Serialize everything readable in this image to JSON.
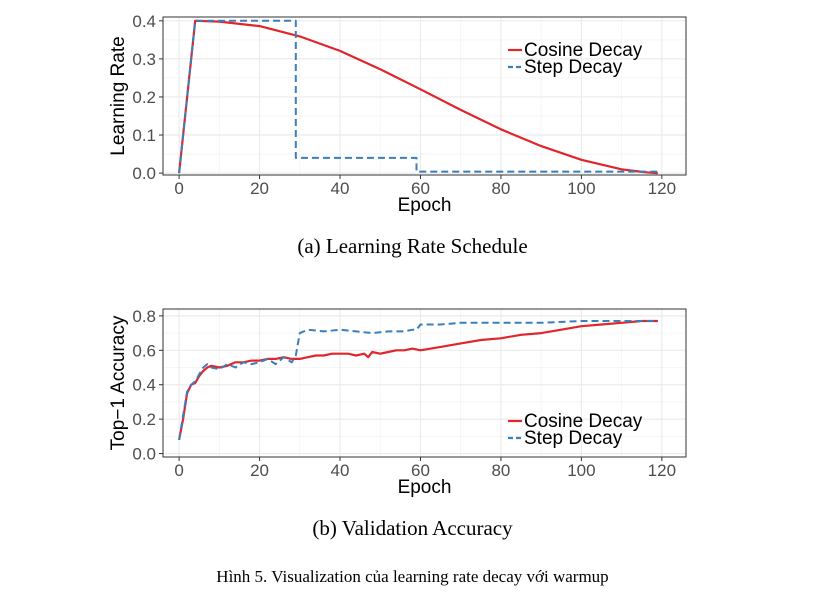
{
  "figure_caption": "Hình 5. Visualization của learning rate decay với warmup",
  "colors": {
    "cosine": "#e0252b",
    "step": "#3b7fba",
    "grid": "#ebebeb",
    "panel_border": "#333333"
  },
  "chart_data": [
    {
      "type": "line",
      "caption": "(a) Learning Rate Schedule",
      "xlabel": "Epoch",
      "ylabel": "Learning Rate",
      "xlim": [
        -4,
        126
      ],
      "ylim": [
        -0.005,
        0.41
      ],
      "xticks": [
        0,
        20,
        40,
        60,
        80,
        100,
        120
      ],
      "yticks": [
        0.0,
        0.1,
        0.2,
        0.3,
        0.4
      ],
      "ytick_labels": [
        "0.0",
        "0.1",
        "0.2",
        "0.3",
        "0.4"
      ],
      "grid": true,
      "legend_position": "top-right",
      "series": [
        {
          "name": "Cosine Decay",
          "color": "#e0252b",
          "style": "solid",
          "x": [
            0,
            4,
            10,
            20,
            30,
            40,
            50,
            60,
            70,
            80,
            90,
            100,
            110,
            116,
            119
          ],
          "y": [
            0.0,
            0.4,
            0.398,
            0.386,
            0.359,
            0.321,
            0.273,
            0.22,
            0.166,
            0.115,
            0.071,
            0.035,
            0.01,
            0.002,
            0.0
          ]
        },
        {
          "name": "Step Decay",
          "color": "#3b7fba",
          "style": "dashed",
          "x": [
            0,
            4,
            29,
            29,
            59,
            59,
            119
          ],
          "y": [
            0.0,
            0.4,
            0.4,
            0.04,
            0.04,
            0.004,
            0.004
          ]
        }
      ]
    },
    {
      "type": "line",
      "caption": "(b) Validation Accuracy",
      "xlabel": "Epoch",
      "ylabel": "Top−1 Accuracy",
      "xlim": [
        -4,
        126
      ],
      "ylim": [
        -0.02,
        0.84
      ],
      "xticks": [
        0,
        20,
        40,
        60,
        80,
        100,
        120
      ],
      "yticks": [
        0.0,
        0.2,
        0.4,
        0.6,
        0.8
      ],
      "ytick_labels": [
        "0.0",
        "0.2",
        "0.4",
        "0.6",
        "0.8"
      ],
      "grid": true,
      "legend_position": "bottom-right",
      "series": [
        {
          "name": "Cosine Decay",
          "color": "#e0252b",
          "style": "solid",
          "x": [
            0,
            1,
            2,
            3,
            4,
            5,
            6,
            7,
            8,
            10,
            12,
            14,
            16,
            18,
            20,
            22,
            24,
            26,
            28,
            30,
            32,
            34,
            36,
            38,
            40,
            42,
            44,
            46,
            47,
            48,
            50,
            52,
            54,
            56,
            58,
            60,
            65,
            70,
            75,
            80,
            85,
            90,
            95,
            100,
            105,
            110,
            115,
            119
          ],
          "y": [
            0.08,
            0.2,
            0.35,
            0.4,
            0.41,
            0.45,
            0.48,
            0.5,
            0.51,
            0.5,
            0.51,
            0.53,
            0.53,
            0.54,
            0.54,
            0.55,
            0.55,
            0.56,
            0.55,
            0.55,
            0.56,
            0.57,
            0.57,
            0.58,
            0.58,
            0.58,
            0.57,
            0.58,
            0.56,
            0.59,
            0.58,
            0.59,
            0.6,
            0.6,
            0.61,
            0.6,
            0.62,
            0.64,
            0.66,
            0.67,
            0.69,
            0.7,
            0.72,
            0.74,
            0.75,
            0.76,
            0.77,
            0.77
          ]
        },
        {
          "name": "Step Decay",
          "color": "#3b7fba",
          "style": "dashed",
          "x": [
            0,
            1,
            2,
            3,
            4,
            5,
            6,
            7,
            8,
            10,
            12,
            14,
            16,
            18,
            20,
            22,
            24,
            26,
            28,
            29,
            30,
            32,
            36,
            40,
            44,
            48,
            52,
            56,
            58,
            59,
            60,
            65,
            70,
            80,
            90,
            100,
            110,
            119
          ],
          "y": [
            0.08,
            0.22,
            0.36,
            0.4,
            0.42,
            0.46,
            0.5,
            0.52,
            0.5,
            0.49,
            0.52,
            0.5,
            0.53,
            0.52,
            0.53,
            0.55,
            0.52,
            0.56,
            0.53,
            0.57,
            0.7,
            0.72,
            0.71,
            0.72,
            0.71,
            0.7,
            0.71,
            0.71,
            0.72,
            0.72,
            0.75,
            0.75,
            0.76,
            0.76,
            0.76,
            0.77,
            0.77,
            0.77
          ]
        }
      ]
    }
  ]
}
